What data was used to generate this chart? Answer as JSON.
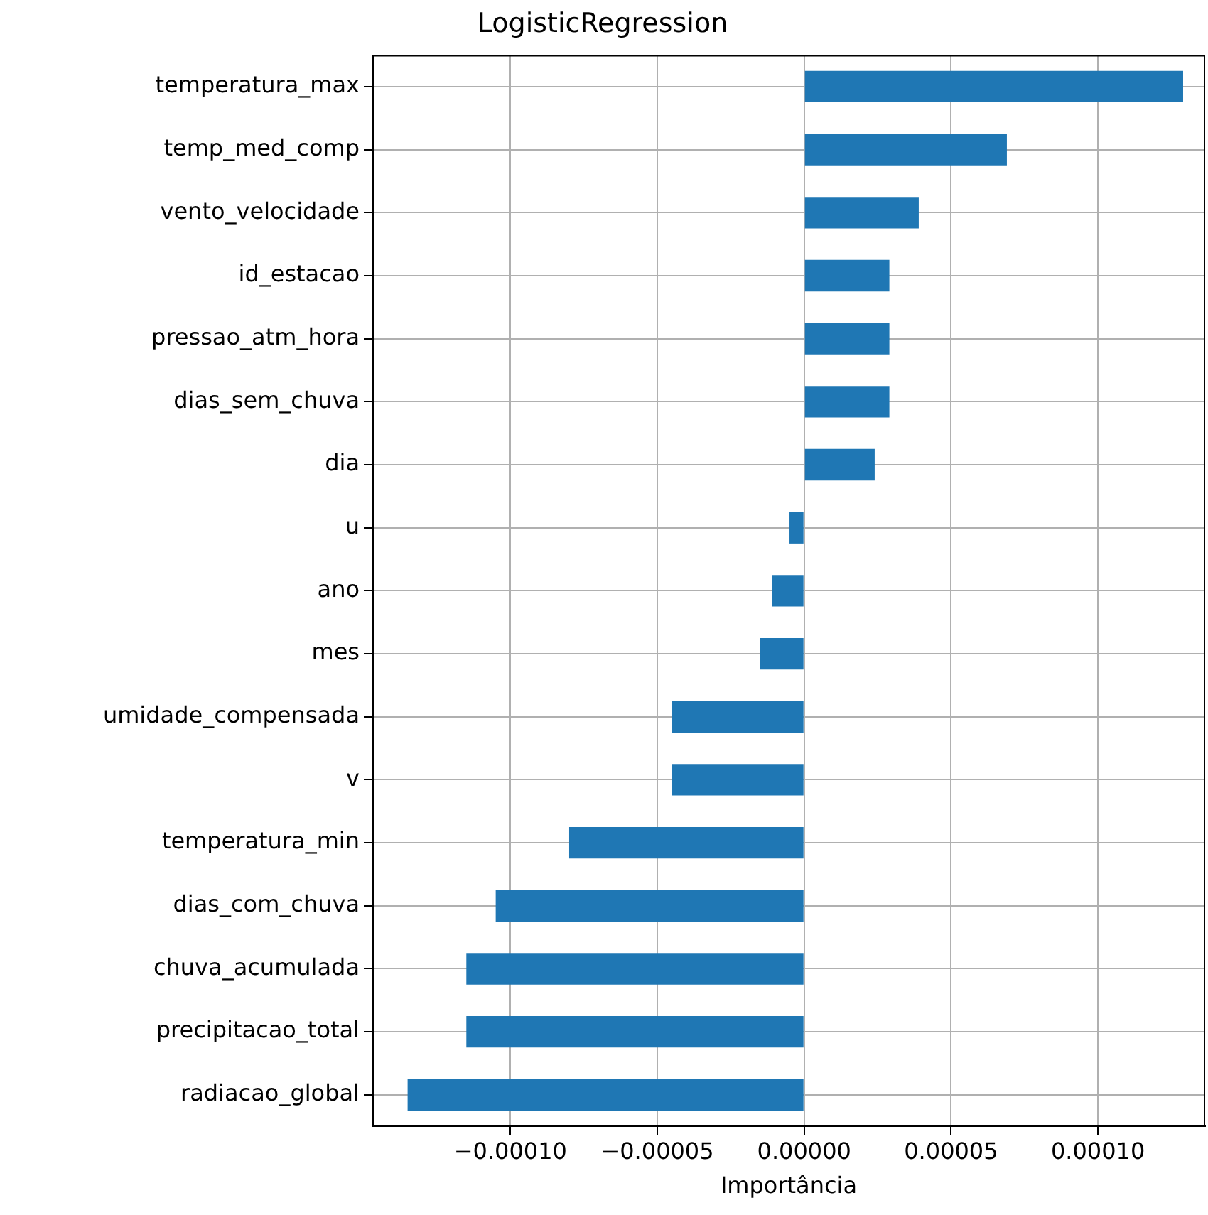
{
  "chart_data": {
    "type": "bar",
    "orientation": "horizontal",
    "title": "LogisticRegression",
    "xlabel": "Importância",
    "categories": [
      "temperatura_max",
      "temp_med_comp",
      "vento_velocidade",
      "id_estacao",
      "pressao_atm_hora",
      "dias_sem_chuva",
      "dia",
      "u",
      "ano",
      "mes",
      "umidade_compensada",
      "v",
      "temperatura_min",
      "dias_com_chuva",
      "chuva_acumulada",
      "precipitacao_total",
      "radiacao_global"
    ],
    "values": [
      0.000129,
      6.9e-05,
      3.9e-05,
      2.9e-05,
      2.9e-05,
      2.9e-05,
      2.4e-05,
      -5e-06,
      -1.1e-05,
      -1.5e-05,
      -4.5e-05,
      -4.5e-05,
      -8e-05,
      -0.000105,
      -0.000115,
      -0.000115,
      -0.000135
    ],
    "color": "#1f77b4",
    "xlim": [
      -0.000147,
      0.0001365
    ],
    "xticks": [
      {
        "value": -0.0001,
        "label": "−0.00010"
      },
      {
        "value": -5e-05,
        "label": "−0.00005"
      },
      {
        "value": 0,
        "label": "0.00000"
      },
      {
        "value": 5e-05,
        "label": "0.00005"
      },
      {
        "value": 0.0001,
        "label": "0.00010"
      }
    ],
    "grid": true,
    "legend": false
  }
}
